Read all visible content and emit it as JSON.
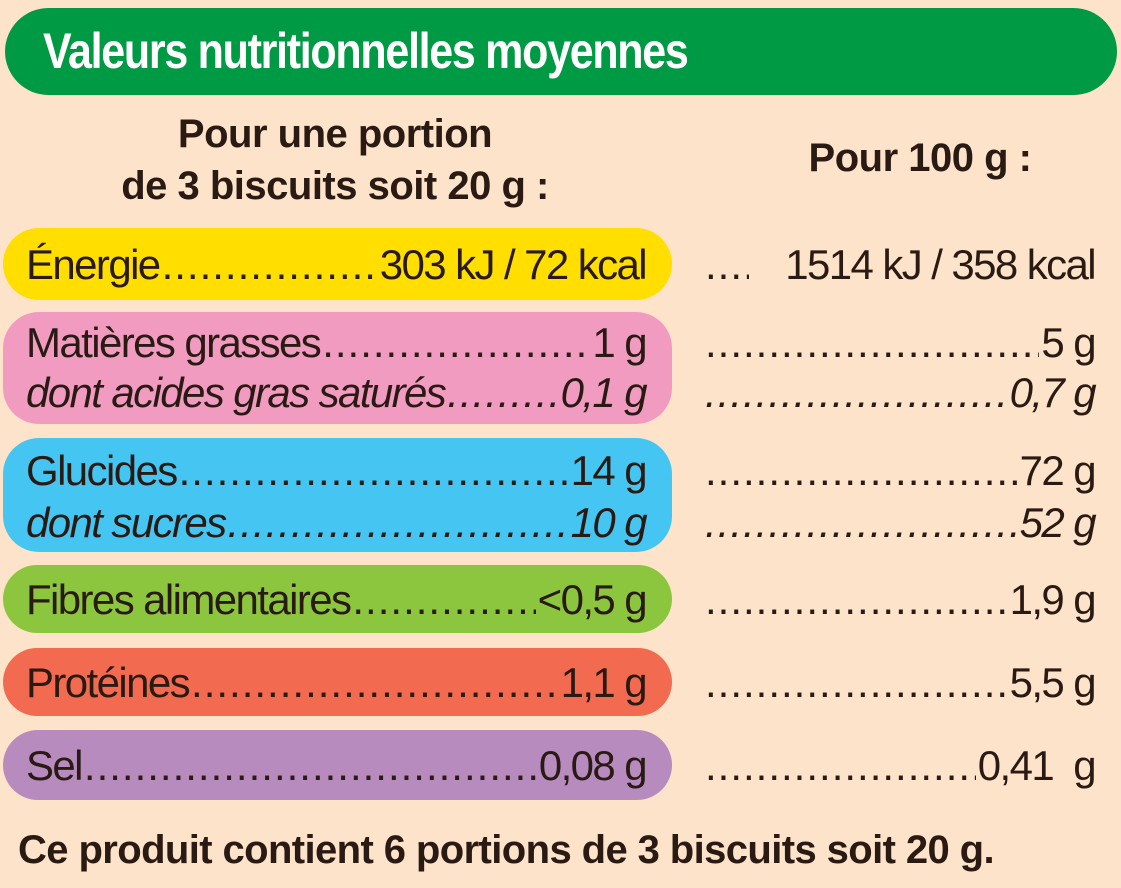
{
  "title": "Valeurs nutritionnelles moyennes",
  "columns": {
    "portion_line1": "Pour une portion",
    "portion_line2": "de 3 biscuits soit 20 g :",
    "per100": "Pour 100 g :"
  },
  "colors": {
    "header": "#009a45",
    "energie": "#ffde00",
    "grasses": "#f29bc1",
    "glucides": "#45c5f1",
    "fibres": "#8cc63f",
    "proteines": "#f26b50",
    "sel": "#b88bbf"
  },
  "rows": [
    {
      "label": "Énergie",
      "portion": "303 kJ / 72 kcal",
      "per100": "1514 kJ / 358 kcal"
    },
    {
      "label": "Matières grasses",
      "portion": "1 g",
      "per100": "5 g"
    },
    {
      "label": "dont acides gras saturés",
      "portion": "0,1 g",
      "per100": "0,7 g"
    },
    {
      "label": "Glucides",
      "portion": "14 g",
      "per100": "72 g"
    },
    {
      "label": "dont sucres",
      "portion": "10 g",
      "per100": "52 g"
    },
    {
      "label": "Fibres alimentaires",
      "portion": "<0,5 g",
      "per100": "1,9 g"
    },
    {
      "label": "Protéines",
      "portion": "1,1 g",
      "per100": "5,5 g"
    },
    {
      "label": "Sel",
      "portion": "0,08 g",
      "per100": "0,41  g"
    }
  ],
  "footer": "Ce produit contient 6 portions de 3 biscuits soit 20 g."
}
